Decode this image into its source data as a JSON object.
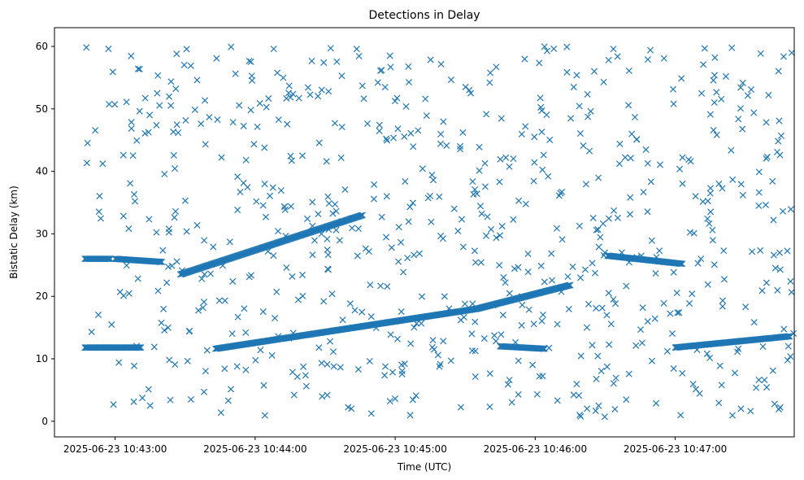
{
  "chart_data": {
    "type": "scatter",
    "title": "Detections in Delay",
    "xlabel": "Time (UTC)",
    "ylabel": "Bistatic Delay (km)",
    "marker": "x",
    "color": "#1f77b4",
    "x_ticks": [
      "2025-06-23 10:43:00",
      "2025-06-23 10:44:00",
      "2025-06-23 10:45:00",
      "2025-06-23 10:46:00",
      "2025-06-23 10:47:00"
    ],
    "y_ticks": [
      "0",
      "10",
      "20",
      "30",
      "40",
      "50",
      "60"
    ],
    "xlim": [
      "2025-06-23 10:42:34",
      "2025-06-23 10:47:51"
    ],
    "ylim": [
      -2.5,
      63
    ],
    "grid": false,
    "tracks": [
      {
        "t_start": "2025-06-23 10:42:47",
        "t_end": "2025-06-23 10:43:11",
        "delay_start": 11.8,
        "delay_end": 11.8
      },
      {
        "t_start": "2025-06-23 10:43:43",
        "t_end": "2025-06-23 10:45:35",
        "delay_start": 11.6,
        "delay_end": 18.0
      },
      {
        "t_start": "2025-06-23 10:45:35",
        "t_end": "2025-06-23 10:46:15",
        "delay_start": 18.0,
        "delay_end": 21.8
      },
      {
        "t_start": "2025-06-23 10:43:28",
        "t_end": "2025-06-23 10:44:46",
        "delay_start": 23.5,
        "delay_end": 33.0
      },
      {
        "t_start": "2025-06-23 10:47:00",
        "t_end": "2025-06-23 10:47:49",
        "delay_start": 11.8,
        "delay_end": 13.6
      },
      {
        "t_start": "2025-06-23 10:46:31",
        "t_end": "2025-06-23 10:47:03",
        "delay_start": 26.5,
        "delay_end": 25.2
      },
      {
        "t_start": "2025-06-23 10:45:45",
        "t_end": "2025-06-23 10:46:04",
        "delay_start": 12.0,
        "delay_end": 11.6
      },
      {
        "t_start": "2025-06-23 10:42:47",
        "t_end": "2025-06-23 10:42:58",
        "delay_start": 26.0,
        "delay_end": 26.0
      },
      {
        "t_start": "2025-06-23 10:43:00",
        "t_end": "2025-06-23 10:43:20",
        "delay_start": 26.0,
        "delay_end": 25.5
      }
    ],
    "scatter_seed": 42,
    "scatter_count": 720,
    "scatter_x_range": [
      "2025-06-23 10:42:47",
      "2025-06-23 10:47:51"
    ],
    "scatter_y_range": [
      0.5,
      60
    ]
  }
}
